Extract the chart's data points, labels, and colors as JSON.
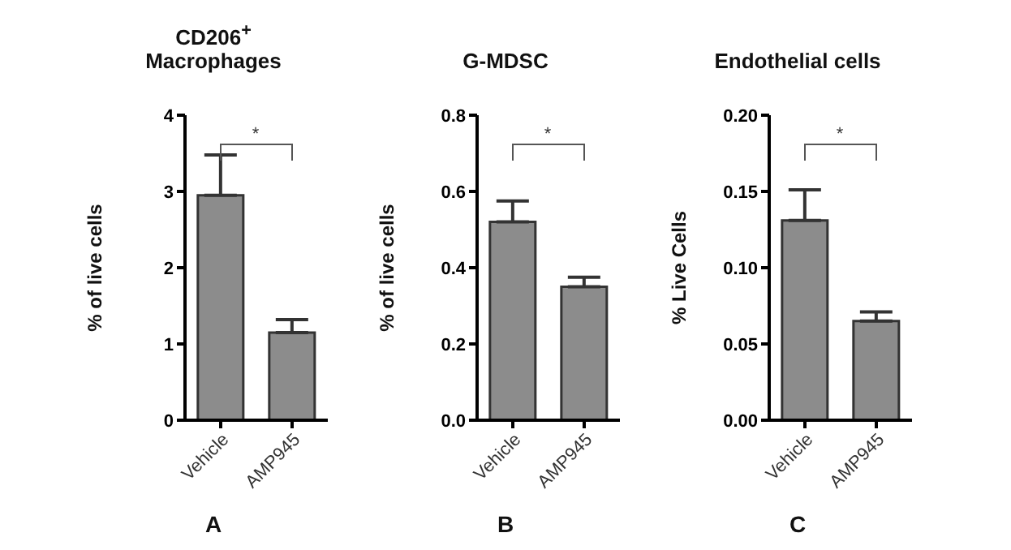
{
  "chart_data": [
    {
      "type": "bar",
      "title": "CD206$^{+}$ Macrophages",
      "ylabel": "% of live cells",
      "categories": [
        "Vehicle",
        "AMP945"
      ],
      "values": [
        2.95,
        1.15
      ],
      "errors": [
        [
          2.95,
          3.48
        ],
        [
          1.15,
          1.32
        ]
      ],
      "color": "#8c8c8c",
      "ylim": [
        0,
        4
      ],
      "yticks": [
        0,
        1,
        2,
        3,
        4
      ],
      "grid": false,
      "annotations": [
        "*",
        "A"
      ]
    },
    {
      "type": "bar",
      "title": "G-MDSC",
      "ylabel": "% of live cells",
      "categories": [
        "Vehicle",
        "AMP945"
      ],
      "values": [
        0.52,
        0.35
      ],
      "errors": [
        [
          0.52,
          0.575
        ],
        [
          0.35,
          0.375
        ]
      ],
      "color": "#8c8c8c",
      "ylim": [
        0,
        0.8
      ],
      "yticks": [
        {
          "value": 0,
          "label": "0.0"
        },
        0.2,
        0.4,
        0.6,
        0.8
      ],
      "grid": false,
      "annotations": [
        "*",
        "B"
      ]
    },
    {
      "type": "bar",
      "title": "Endothelial cells",
      "ylabel": "% Live Cells",
      "categories": [
        "Vehicle",
        "AMP945"
      ],
      "values": [
        0.131,
        0.065
      ],
      "errors": [
        [
          0.131,
          0.151
        ],
        [
          0.065,
          0.071
        ]
      ],
      "color": "#8c8c8c",
      "ylim": [
        0,
        0.2
      ],
      "yticks": [
        {
          "value": 0,
          "label": "0.00"
        },
        0.05,
        {
          "value": 0.1,
          "label": "0.10"
        },
        0.15,
        {
          "value": 0.2,
          "label": "0.20"
        }
      ],
      "grid": false,
      "annotations": [
        "*",
        "C"
      ]
    }
  ]
}
